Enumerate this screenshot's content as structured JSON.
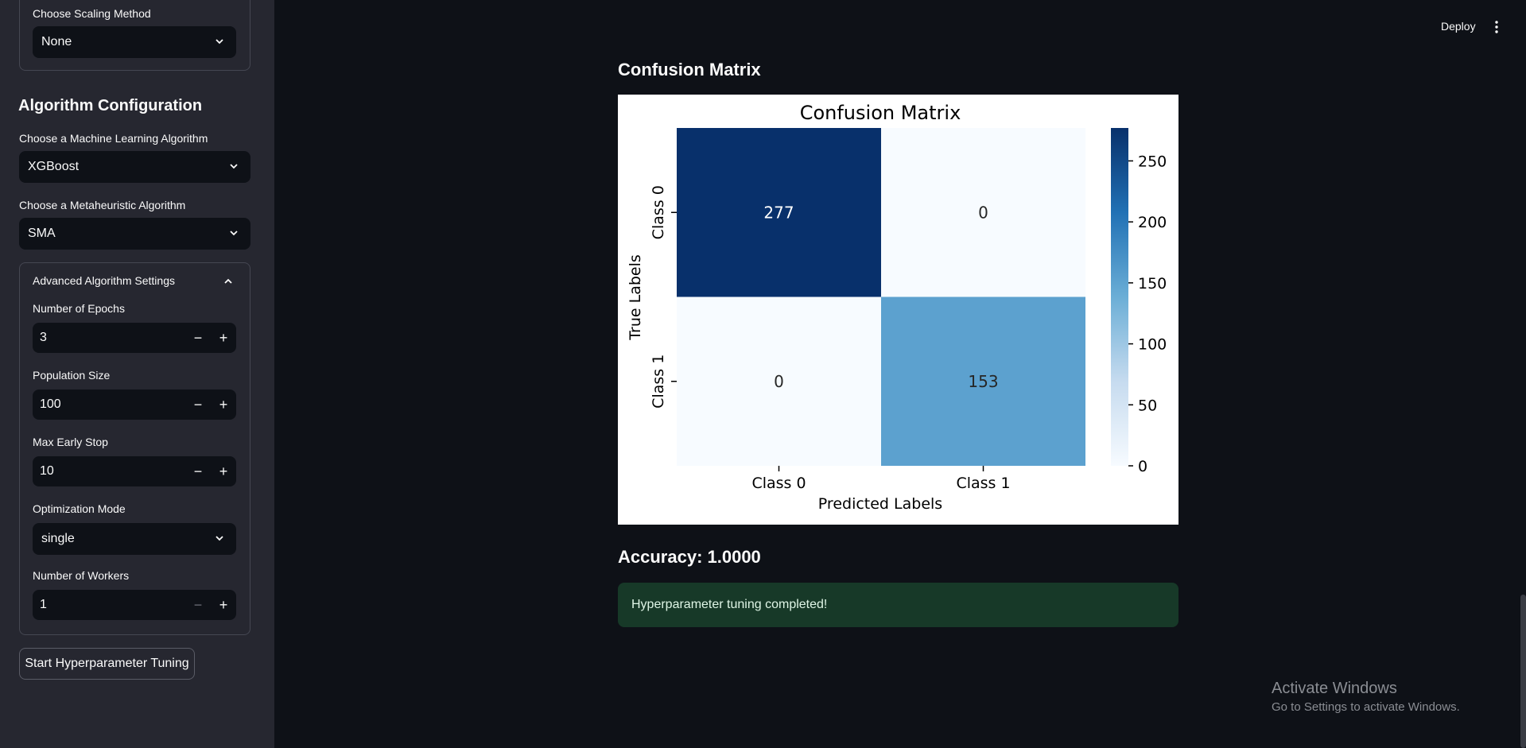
{
  "sidebar": {
    "scaling": {
      "label": "Choose Scaling Method",
      "value": "None"
    },
    "section_title": "Algorithm Configuration",
    "ml_algo": {
      "label": "Choose a Machine Learning Algorithm",
      "value": "XGBoost"
    },
    "meta_algo": {
      "label": "Choose a Metaheuristic Algorithm",
      "value": "SMA"
    },
    "advanced": {
      "title": "Advanced Algorithm Settings",
      "epochs": {
        "label": "Number of Epochs",
        "value": "3"
      },
      "population": {
        "label": "Population Size",
        "value": "100"
      },
      "early_stop": {
        "label": "Max Early Stop",
        "value": "10"
      },
      "mode": {
        "label": "Optimization Mode",
        "value": "single"
      },
      "workers": {
        "label": "Number of Workers",
        "value": "1"
      }
    },
    "start_button": "Start Hyperparameter Tuning"
  },
  "header": {
    "deploy": "Deploy"
  },
  "main": {
    "title": "Confusion Matrix",
    "accuracy": "Accuracy: 1.0000",
    "success": "Hyperparameter tuning completed!"
  },
  "chart_data": {
    "type": "heatmap",
    "title": "Confusion Matrix",
    "xlabel": "Predicted Labels",
    "ylabel": "True Labels",
    "x_categories": [
      "Class 0",
      "Class 1"
    ],
    "y_categories": [
      "Class 0",
      "Class 1"
    ],
    "values": [
      [
        277,
        0
      ],
      [
        0,
        153
      ]
    ],
    "colormap": "Blues",
    "colorbar_ticks": [
      0,
      50,
      100,
      150,
      200,
      250
    ],
    "vmin": 0,
    "vmax": 277
  },
  "watermark": {
    "line1": "Activate Windows",
    "line2": "Go to Settings to activate Windows."
  }
}
